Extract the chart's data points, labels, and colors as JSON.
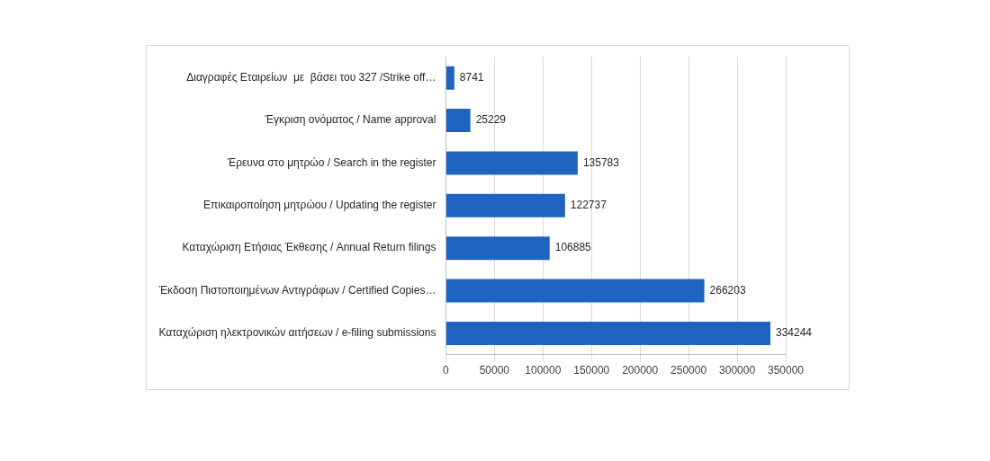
{
  "chart_data": {
    "type": "bar",
    "orientation": "horizontal",
    "categories": [
      "Διαγραφές Εταιρείων  με  βάσει του 327 /Strike off…",
      "Έγκριση ονόματος / Name approval",
      "Έρευνα στο μητρώο / Search in the register",
      "Επικαιροποίηση μητρώου / Updating the register",
      "Καταχώριση Ετήσιας Έκθεσης / Annual Return filings",
      "Έκδοση Πιστοποιημένων Αντιγράφων / Certified Copies…",
      "Καταχώριση ηλεκτρονικών αιτήσεων / e-filing submissions"
    ],
    "values": [
      8741,
      25229,
      135783,
      122737,
      106885,
      266203,
      334244
    ],
    "color": "#1f63c0",
    "xlim": [
      0,
      350000
    ],
    "xticks": [
      0,
      50000,
      100000,
      150000,
      200000,
      250000,
      300000,
      350000
    ],
    "grid": "x",
    "data_labels": true
  }
}
